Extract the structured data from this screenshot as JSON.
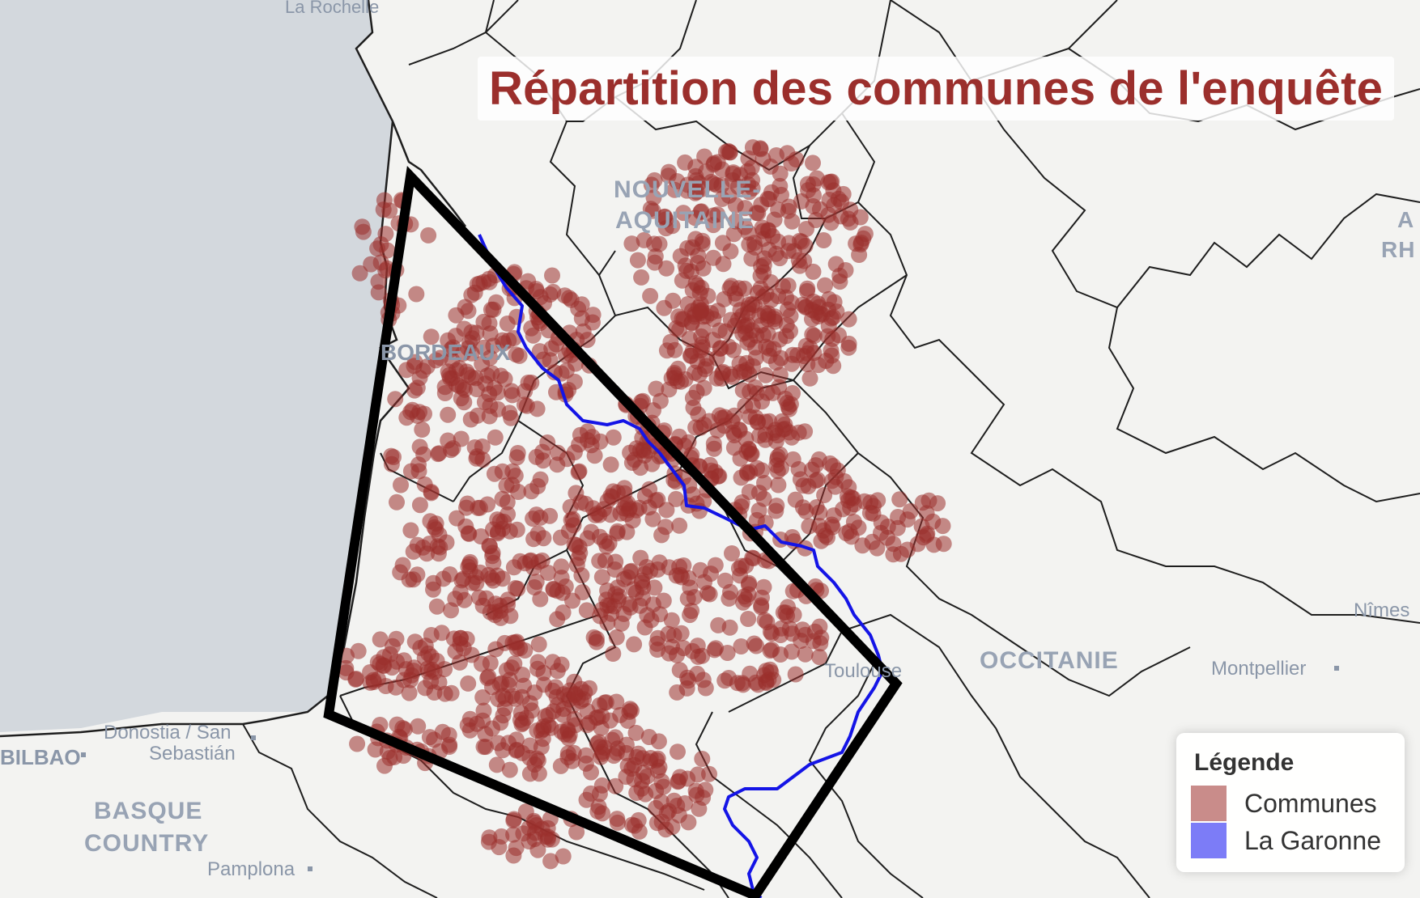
{
  "map": {
    "title": "Répartition des communes de l'enquête",
    "places": {
      "la_rochelle": "La Rochelle",
      "nouvelle": "NOUVELLE-",
      "aquitaine": "AQUITAINE",
      "bordeaux": "BORDEAUX",
      "donostia_1": "Donostia / San",
      "donostia_2": "Sebastián",
      "bilbao": "BILBAO",
      "basque_1": "BASQUE",
      "basque_2": "COUNTRY",
      "pamplona": "Pamplona",
      "toulouse": "Toulouse",
      "occitanie": "OCCITANIE",
      "montpellier": "Montpellier",
      "nimes": "Nîmes",
      "rh": "RH",
      "a": "A"
    },
    "legend": {
      "title": "Légende",
      "items": [
        {
          "label": "Communes",
          "color": "#c98c8a"
        },
        {
          "label": "La Garonne",
          "color": "#7c7cf7"
        }
      ]
    },
    "colors": {
      "sea": "#d3d8dd",
      "land": "#f3f3f1",
      "boundary": "#1e1e1e",
      "commune": "#9b2f2c",
      "river": "#1414e6",
      "study_area": "#000000"
    }
  }
}
